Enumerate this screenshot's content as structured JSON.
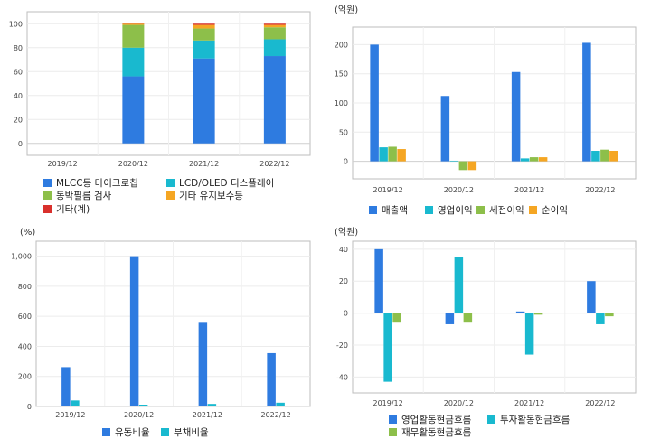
{
  "chart_data": [
    {
      "type": "bar",
      "stacked": true,
      "categories": [
        "2019/12",
        "2020/12",
        "2021/12",
        "2022/12"
      ],
      "ylim": [
        -10,
        110
      ],
      "yticks": [
        0,
        20,
        40,
        60,
        80,
        100
      ],
      "unit": "",
      "legend_position": "bottom",
      "grid": true,
      "series": [
        {
          "name": "MLCC등 마이크로칩",
          "color": "#2e7be0",
          "values": [
            null,
            56,
            71,
            73
          ]
        },
        {
          "name": "LCD/OLED 디스플레이",
          "color": "#19b9cf",
          "values": [
            null,
            24,
            15,
            14
          ]
        },
        {
          "name": "동박필름 검사",
          "color": "#8dbf4a",
          "values": [
            null,
            19,
            10,
            10
          ]
        },
        {
          "name": "기타 유지보수등",
          "color": "#f5a623",
          "values": [
            null,
            1,
            3,
            2
          ]
        },
        {
          "name": "기타(계)",
          "color": "#d9302c",
          "values": [
            null,
            0.5,
            1,
            1
          ]
        }
      ]
    },
    {
      "type": "bar",
      "categories": [
        "2019/12",
        "2020/12",
        "2021/12",
        "2022/12"
      ],
      "ylim": [
        -30,
        230
      ],
      "yticks": [
        0,
        50,
        100,
        150,
        200
      ],
      "unit": "(억원)",
      "legend_position": "bottom",
      "grid": true,
      "series": [
        {
          "name": "매출액",
          "color": "#2e7be0",
          "values": [
            200,
            112,
            153,
            203
          ]
        },
        {
          "name": "영업이익",
          "color": "#19b9cf",
          "values": [
            24,
            1,
            5,
            18
          ]
        },
        {
          "name": "세전이익",
          "color": "#8dbf4a",
          "values": [
            25,
            -15,
            7,
            20
          ]
        },
        {
          "name": "순이익",
          "color": "#f5a623",
          "values": [
            21,
            -15,
            7,
            18
          ]
        }
      ]
    },
    {
      "type": "bar",
      "categories": [
        "2019/12",
        "2020/12",
        "2021/12",
        "2022/12"
      ],
      "ylim": [
        0,
        1100
      ],
      "yticks": [
        0,
        200,
        400,
        600,
        800,
        1000
      ],
      "ytick_labels": [
        "0",
        "200",
        "400",
        "600",
        "800",
        "1,000"
      ],
      "unit": "(%)",
      "legend_position": "bottom",
      "grid": true,
      "series": [
        {
          "name": "유동비율",
          "color": "#2e7be0",
          "values": [
            262,
            1000,
            557,
            355
          ]
        },
        {
          "name": "부채비율",
          "color": "#19b9cf",
          "values": [
            40,
            12,
            17,
            25
          ]
        }
      ]
    },
    {
      "type": "bar",
      "categories": [
        "2019/12",
        "2020/12",
        "2021/12",
        "2022/12"
      ],
      "ylim": [
        -50,
        45
      ],
      "yticks": [
        -40,
        -20,
        0,
        20,
        40
      ],
      "unit": "(억원)",
      "legend_position": "bottom",
      "grid": true,
      "series": [
        {
          "name": "영업활동현금흐름",
          "color": "#2e7be0",
          "values": [
            40,
            -7,
            1,
            20
          ]
        },
        {
          "name": "투자활동현금흐름",
          "color": "#19b9cf",
          "values": [
            -43,
            35,
            -26,
            -7
          ]
        },
        {
          "name": "재무활동현금흐름",
          "color": "#8dbf4a",
          "values": [
            -6,
            -6,
            -1,
            -2
          ]
        }
      ]
    }
  ]
}
